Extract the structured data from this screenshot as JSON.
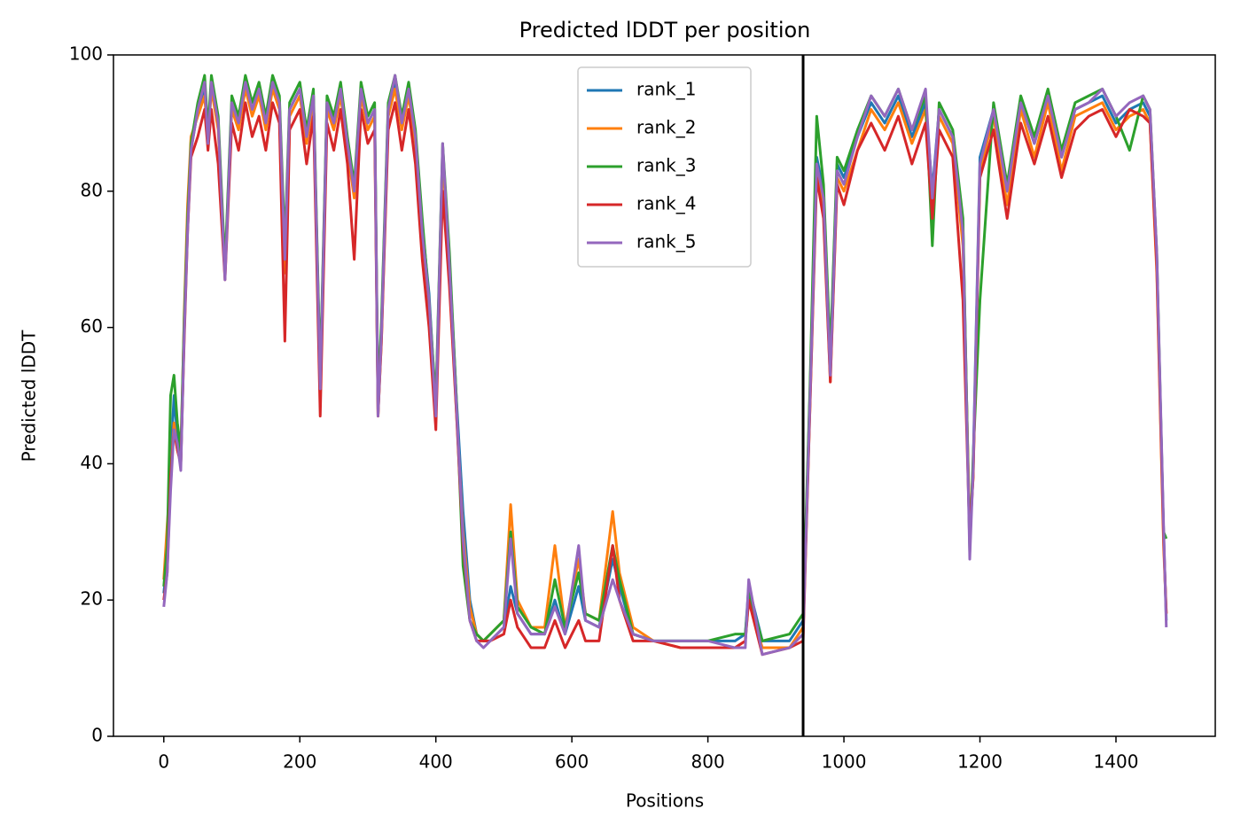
{
  "chart_data": {
    "type": "line",
    "title": "Predicted lDDT per position",
    "xlabel": "Positions",
    "ylabel": "Predicted lDDT",
    "x": [
      0,
      5,
      10,
      15,
      20,
      25,
      30,
      35,
      40,
      50,
      60,
      65,
      70,
      80,
      90,
      100,
      110,
      120,
      130,
      140,
      150,
      160,
      170,
      178,
      185,
      200,
      210,
      220,
      230,
      240,
      250,
      260,
      270,
      280,
      290,
      300,
      310,
      315,
      320,
      330,
      340,
      350,
      360,
      370,
      380,
      390,
      400,
      410,
      420,
      430,
      440,
      450,
      460,
      470,
      480,
      500,
      510,
      520,
      540,
      560,
      575,
      590,
      610,
      620,
      640,
      660,
      670,
      690,
      720,
      760,
      800,
      840,
      855,
      860,
      880,
      920,
      940,
      950,
      960,
      970,
      980,
      990,
      1000,
      1020,
      1040,
      1060,
      1080,
      1100,
      1120,
      1130,
      1140,
      1160,
      1175,
      1185,
      1190,
      1200,
      1220,
      1240,
      1260,
      1280,
      1300,
      1320,
      1340,
      1360,
      1380,
      1400,
      1420,
      1440,
      1450,
      1460,
      1470,
      1474
    ],
    "series": [
      {
        "name": "rank_1",
        "color": "#1f77b4",
        "values": [
          21,
          26,
          40,
          50,
          44,
          40,
          60,
          75,
          86,
          92,
          95,
          88,
          96,
          90,
          68,
          93,
          90,
          96,
          92,
          95,
          90,
          96,
          93,
          70,
          92,
          95,
          88,
          94,
          52,
          93,
          90,
          95,
          87,
          80,
          95,
          90,
          92,
          48,
          60,
          92,
          96,
          90,
          95,
          88,
          75,
          65,
          48,
          86,
          70,
          50,
          33,
          20,
          15,
          14,
          14,
          16,
          22,
          18,
          15,
          15,
          20,
          15,
          22,
          17,
          16,
          26,
          22,
          15,
          14,
          14,
          14,
          14,
          15,
          22,
          14,
          14,
          17,
          50,
          85,
          80,
          55,
          84,
          82,
          88,
          93,
          90,
          94,
          88,
          93,
          80,
          92,
          88,
          75,
          28,
          40,
          85,
          92,
          80,
          93,
          87,
          94,
          85,
          92,
          93,
          94,
          90,
          92,
          93,
          91,
          70,
          30,
          17
        ]
      },
      {
        "name": "rank_2",
        "color": "#ff7f0e",
        "values": [
          23,
          31,
          38,
          46,
          42,
          40,
          62,
          78,
          88,
          91,
          94,
          87,
          95,
          89,
          68,
          92,
          89,
          95,
          91,
          94,
          89,
          95,
          92,
          68,
          91,
          94,
          87,
          93,
          50,
          92,
          89,
          94,
          86,
          79,
          94,
          89,
          91,
          47,
          58,
          91,
          95,
          89,
          94,
          87,
          74,
          62,
          47,
          85,
          69,
          48,
          30,
          19,
          15,
          14,
          15,
          17,
          34,
          20,
          16,
          16,
          28,
          16,
          26,
          18,
          17,
          33,
          24,
          16,
          14,
          13,
          13,
          13,
          14,
          20,
          13,
          13,
          16,
          48,
          83,
          78,
          52,
          82,
          80,
          86,
          92,
          89,
          93,
          87,
          92,
          78,
          91,
          87,
          72,
          30,
          38,
          83,
          91,
          78,
          92,
          85,
          93,
          83,
          91,
          92,
          93,
          89,
          91,
          92,
          90,
          68,
          28,
          18
        ]
      },
      {
        "name": "rank_3",
        "color": "#2ca02c",
        "values": [
          22,
          28,
          50,
          53,
          46,
          42,
          61,
          76,
          87,
          93,
          97,
          89,
          97,
          91,
          69,
          94,
          91,
          97,
          93,
          96,
          91,
          97,
          94,
          72,
          93,
          96,
          89,
          95,
          53,
          94,
          91,
          96,
          88,
          81,
          96,
          91,
          93,
          49,
          61,
          93,
          97,
          91,
          96,
          89,
          76,
          64,
          49,
          87,
          71,
          50,
          25,
          17,
          15,
          14,
          15,
          17,
          30,
          19,
          16,
          15,
          23,
          16,
          24,
          18,
          17,
          28,
          23,
          15,
          14,
          14,
          14,
          15,
          15,
          21,
          14,
          15,
          18,
          51,
          91,
          81,
          56,
          85,
          83,
          89,
          94,
          91,
          95,
          89,
          94,
          72,
          93,
          89,
          76,
          27,
          41,
          64,
          93,
          81,
          94,
          88,
          95,
          86,
          93,
          94,
          95,
          91,
          86,
          94,
          92,
          71,
          30,
          29
        ]
      },
      {
        "name": "rank_4",
        "color": "#d62728",
        "values": [
          20,
          24,
          38,
          45,
          42,
          40,
          58,
          74,
          85,
          88,
          92,
          86,
          92,
          84,
          67,
          90,
          86,
          93,
          88,
          91,
          86,
          93,
          90,
          58,
          89,
          92,
          84,
          91,
          47,
          90,
          86,
          92,
          84,
          70,
          92,
          87,
          89,
          47,
          58,
          89,
          93,
          86,
          92,
          84,
          70,
          60,
          45,
          80,
          66,
          48,
          28,
          17,
          14,
          14,
          14,
          15,
          20,
          16,
          13,
          13,
          17,
          13,
          17,
          14,
          14,
          28,
          20,
          14,
          14,
          13,
          13,
          13,
          14,
          20,
          12,
          13,
          14,
          48,
          82,
          76,
          52,
          81,
          78,
          86,
          90,
          86,
          91,
          84,
          90,
          76,
          89,
          85,
          64,
          29,
          38,
          82,
          89,
          76,
          90,
          84,
          91,
          82,
          89,
          91,
          92,
          88,
          92,
          91,
          90,
          69,
          29,
          18
        ]
      },
      {
        "name": "rank_5",
        "color": "#9467bd",
        "values": [
          19,
          24,
          36,
          45,
          43,
          39,
          59,
          74,
          86,
          92,
          96,
          87,
          96,
          90,
          67,
          93,
          90,
          96,
          92,
          95,
          90,
          96,
          93,
          70,
          92,
          95,
          88,
          94,
          51,
          93,
          90,
          95,
          87,
          80,
          95,
          90,
          92,
          47,
          59,
          92,
          97,
          90,
          95,
          88,
          74,
          64,
          47,
          87,
          69,
          49,
          29,
          17,
          14,
          13,
          14,
          16,
          29,
          18,
          15,
          15,
          19,
          15,
          28,
          17,
          16,
          23,
          20,
          15,
          14,
          14,
          14,
          13,
          13,
          23,
          12,
          13,
          15,
          49,
          84,
          79,
          53,
          83,
          81,
          88,
          94,
          91,
          95,
          89,
          95,
          79,
          92,
          88,
          74,
          26,
          39,
          84,
          92,
          80,
          93,
          87,
          94,
          85,
          92,
          93,
          95,
          91,
          93,
          94,
          92,
          71,
          31,
          16
        ]
      }
    ],
    "vline": 940,
    "vline_color": "#000000",
    "xlim": [
      -74,
      1546
    ],
    "ylim": [
      0,
      100
    ],
    "xticks": [
      0,
      200,
      400,
      600,
      800,
      1000,
      1200,
      1400
    ],
    "yticks": [
      0,
      20,
      40,
      60,
      80,
      100
    ],
    "grid": false,
    "legend": "upper center"
  }
}
